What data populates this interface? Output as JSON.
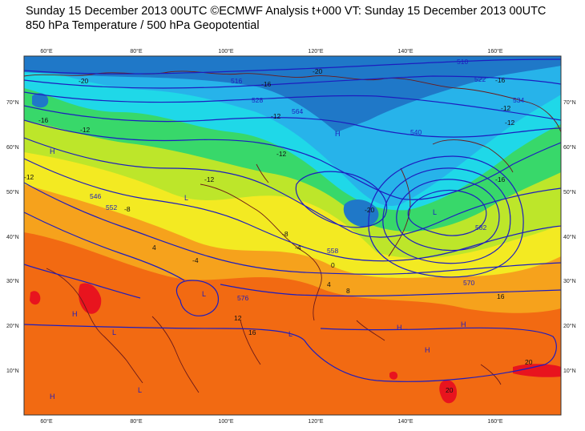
{
  "header": {
    "line1": "Sunday 15 December 2013 00UTC ©ECMWF Analysis t+000 VT: Sunday 15 December 2013 00UTC",
    "line2": "850 hPa Temperature / 500 hPa Geopotential"
  },
  "map": {
    "lon_ticks": [
      "60°E",
      "80°E",
      "100°E",
      "120°E",
      "140°E",
      "160°E"
    ],
    "lat_ticks": [
      "70°N",
      "60°N",
      "50°N",
      "40°N",
      "30°N",
      "20°N",
      "10°N"
    ],
    "temperature_labels": [
      "-20",
      "-20",
      "-20",
      "-16",
      "-16",
      "-16",
      "-16",
      "-12",
      "-12",
      "-12",
      "-12",
      "-12",
      "-12",
      "-12",
      "-8",
      "-8",
      "-4",
      "-4",
      "4",
      "0",
      "4",
      "8",
      "12",
      "16",
      "16",
      "20",
      "20"
    ],
    "geopotential_labels": [
      "510",
      "516",
      "522",
      "528",
      "534",
      "540",
      "546",
      "552",
      "558",
      "564",
      "570",
      "576",
      "582"
    ],
    "pressure_centers": [
      "H",
      "L"
    ],
    "palette": {
      "very_cold": "#1f78c8",
      "cold": "#27b3ea",
      "cyan": "#1fd8e8",
      "green": "#38d86a",
      "yellow_green": "#bde62a",
      "yellow": "#f3ea22",
      "orange": "#f6a21c",
      "deep_orange": "#f26a12",
      "red": "#e8141e",
      "contour": "#1d1dbf",
      "coast": "#6b1a1a"
    }
  }
}
